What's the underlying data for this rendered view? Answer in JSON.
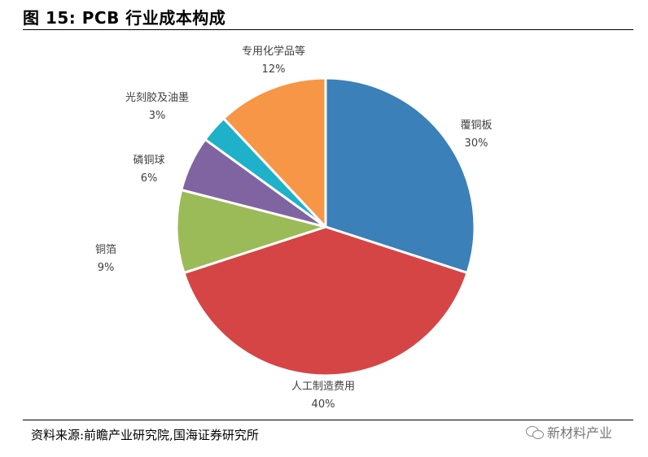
{
  "header": {
    "title": "图 15:  PCB 行业成本构成"
  },
  "footer": {
    "source": "资料来源:前瞻产业研究院,国海证券研究所",
    "watermark": "新材料产业"
  },
  "chart_data": {
    "type": "pie",
    "slices": [
      {
        "label": "覆铜板",
        "value": 30,
        "value_label": "30%",
        "color": "#3B80B9"
      },
      {
        "label": "人工制造费用",
        "value": 40,
        "value_label": "40%",
        "color": "#D64545"
      },
      {
        "label": "铜箔",
        "value": 9,
        "value_label": "9%",
        "color": "#9BBB59"
      },
      {
        "label": "磷铜球",
        "value": 6,
        "value_label": "6%",
        "color": "#8064A2"
      },
      {
        "label": "光刻胶及油墨",
        "value": 3,
        "value_label": "3%",
        "color": "#1FB1C9"
      },
      {
        "label": "专用化学品等",
        "value": 12,
        "value_label": "12%",
        "color": "#F79646"
      }
    ],
    "start": "12 o'clock",
    "direction": "clockwise",
    "legend": "none"
  }
}
